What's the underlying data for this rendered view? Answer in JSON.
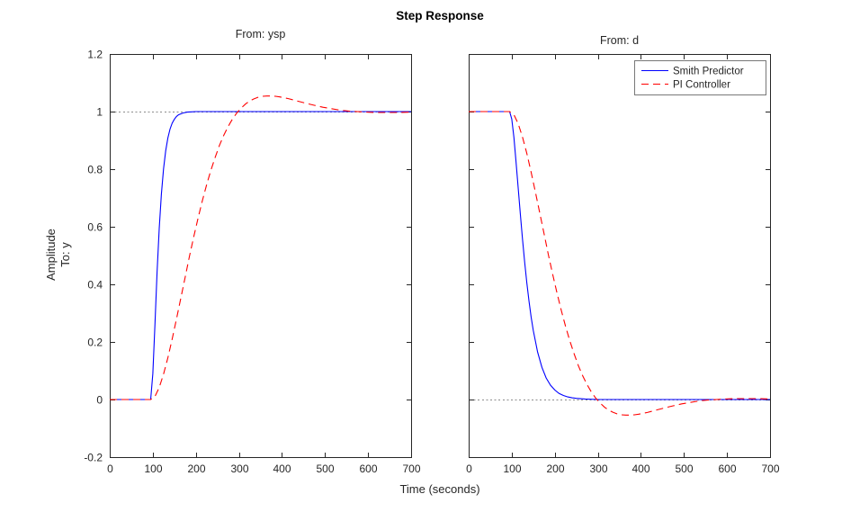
{
  "figure": {
    "title": "Step Response",
    "xlabel": "Time (seconds)",
    "ylabel": "Amplitude",
    "ylabel_sub": "To: y"
  },
  "chart_data": {
    "type": "line",
    "layout": "1x2-shared-y",
    "xlim": [
      0,
      700
    ],
    "ylim": [
      -0.2,
      1.2
    ],
    "xticks": [
      0,
      100,
      200,
      300,
      400,
      500,
      600,
      700
    ],
    "yticks": [
      -0.2,
      0,
      0.2,
      0.4,
      0.6,
      0.8,
      1,
      1.2
    ],
    "grid": false,
    "axis_color": "#262626",
    "reference_line_color": "#8c8c8c",
    "legend": {
      "position": "top-right",
      "subplot_index": 1,
      "entries": [
        "Smith Predictor",
        "PI Controller"
      ]
    },
    "subplots": [
      {
        "title": "From: ysp",
        "reference_line_y": 1,
        "series": [
          {
            "name": "Smith Predictor",
            "color": "#0000ff",
            "style": "solid",
            "x": [
              0,
              95,
              100,
              105,
              110,
              115,
              120,
              125,
              130,
              135,
              140,
              145,
              150,
              155,
              160,
              170,
              180,
              190,
              200,
              300,
              400,
              500,
              600,
              700
            ],
            "y": [
              0,
              0,
              0.09,
              0.264,
              0.442,
              0.594,
              0.713,
              0.801,
              0.864,
              0.908,
              0.939,
              0.96,
              0.973,
              0.983,
              0.989,
              0.995,
              0.998,
              0.999,
              1,
              1,
              1,
              1,
              1,
              1
            ]
          },
          {
            "name": "PI Controller",
            "color": "#ff0000",
            "style": "dashed",
            "x": [
              0,
              95,
              105,
              115,
              125,
              135,
              145,
              155,
              165,
              175,
              185,
              195,
              205,
              215,
              225,
              235,
              245,
              255,
              265,
              275,
              285,
              295,
              305,
              315,
              325,
              335,
              345,
              355,
              365,
              375,
              385,
              395,
              415,
              435,
              455,
              475,
              495,
              515,
              535,
              555,
              575,
              595,
              615,
              635,
              655,
              675,
              700
            ],
            "y": [
              0,
              0,
              0.011,
              0.042,
              0.088,
              0.145,
              0.21,
              0.28,
              0.352,
              0.424,
              0.496,
              0.564,
              0.629,
              0.69,
              0.746,
              0.797,
              0.842,
              0.883,
              0.918,
              0.948,
              0.974,
              0.995,
              1.012,
              1.026,
              1.037,
              1.044,
              1.05,
              1.053,
              1.054,
              1.054,
              1.053,
              1.051,
              1.045,
              1.037,
              1.029,
              1.022,
              1.015,
              1.01,
              1.005,
              1.002,
              1,
              0.998,
              0.997,
              0.997,
              0.997,
              0.997,
              0.998
            ]
          }
        ]
      },
      {
        "title": "From: d",
        "reference_line_y": 0,
        "series": [
          {
            "name": "Smith Predictor",
            "color": "#0000ff",
            "style": "solid",
            "x": [
              0,
              95,
              100,
              105,
              110,
              115,
              120,
              125,
              130,
              135,
              140,
              145,
              150,
              160,
              170,
              180,
              190,
              200,
              210,
              220,
              230,
              240,
              250,
              270,
              300,
              400,
              500,
              600,
              700
            ],
            "y": [
              1,
              1,
              0.974,
              0.91,
              0.827,
              0.736,
              0.645,
              0.558,
              0.478,
              0.406,
              0.343,
              0.287,
              0.24,
              0.165,
              0.112,
              0.075,
              0.05,
              0.033,
              0.021,
              0.014,
              0.009,
              0.006,
              0.004,
              0.002,
              0,
              0,
              0,
              0,
              0
            ]
          },
          {
            "name": "PI Controller",
            "color": "#ff0000",
            "style": "dashed",
            "x": [
              0,
              95,
              105,
              115,
              125,
              135,
              145,
              155,
              165,
              175,
              185,
              195,
              205,
              215,
              225,
              235,
              245,
              255,
              265,
              275,
              285,
              295,
              305,
              315,
              325,
              335,
              345,
              355,
              365,
              375,
              385,
              395,
              415,
              435,
              455,
              475,
              495,
              515,
              535,
              555,
              575,
              595,
              615,
              635,
              655,
              675,
              700
            ],
            "y": [
              1,
              1,
              0.989,
              0.958,
              0.912,
              0.855,
              0.79,
              0.72,
              0.648,
              0.576,
              0.504,
              0.436,
              0.371,
              0.31,
              0.254,
              0.203,
              0.158,
              0.117,
              0.082,
              0.052,
              0.026,
              0.005,
              -0.012,
              -0.026,
              -0.037,
              -0.044,
              -0.05,
              -0.053,
              -0.054,
              -0.054,
              -0.053,
              -0.051,
              -0.045,
              -0.037,
              -0.029,
              -0.022,
              -0.015,
              -0.01,
              -0.005,
              -0.002,
              0,
              0.002,
              0.003,
              0.003,
              0.003,
              0.003,
              0.002
            ]
          }
        ]
      }
    ]
  }
}
